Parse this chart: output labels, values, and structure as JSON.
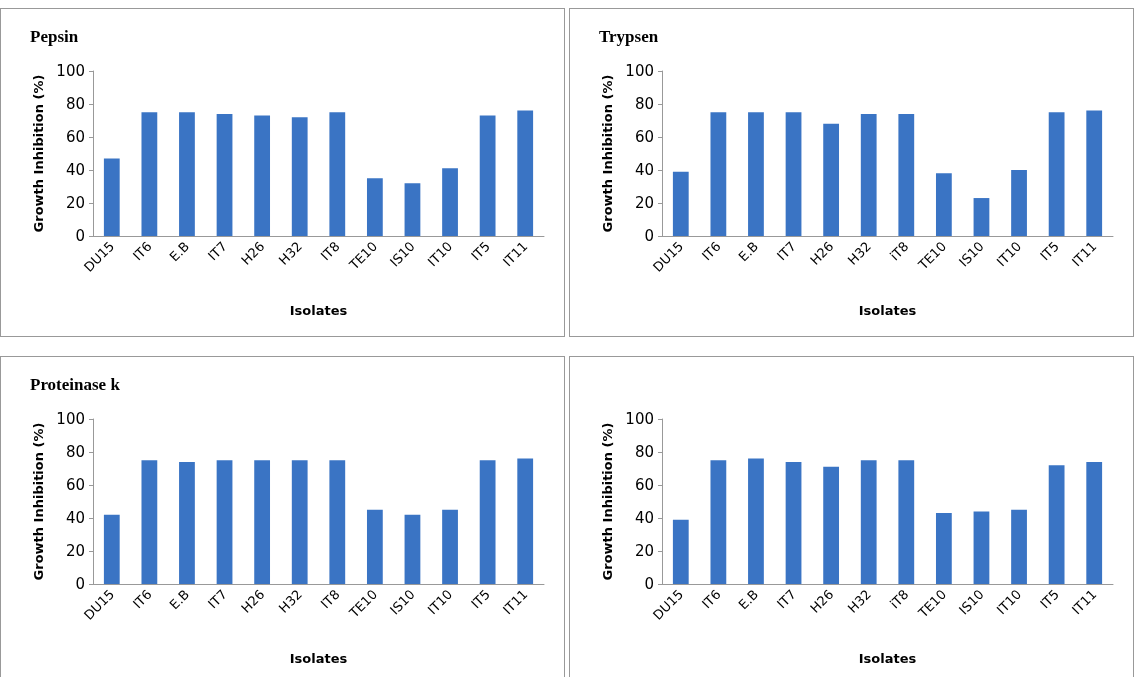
{
  "chart_data": [
    {
      "type": "bar",
      "title": "Pepsin",
      "xlabel": "Isolates",
      "ylabel": "Growth Inhibition (%)",
      "categories": [
        "DU15",
        "IT6",
        "E.B",
        "IT7",
        "H26",
        "H32",
        "IT8",
        "TE10",
        "IS10",
        "IT10",
        "IT5",
        "IT11"
      ],
      "values": [
        47,
        75,
        75,
        74,
        73,
        72,
        75,
        35,
        32,
        41,
        73,
        76
      ],
      "color": "#3a74c4",
      "ylim": [
        0,
        100
      ],
      "yticks": [
        0,
        20,
        40,
        60,
        80,
        100
      ],
      "grid": false
    },
    {
      "type": "bar",
      "title": "Trypsen",
      "xlabel": "Isolates",
      "ylabel": "Growth Inhibition (%)",
      "categories": [
        "DU15",
        "IT6",
        "E.B",
        "IT7",
        "H26",
        "H32",
        "iT8",
        "TE10",
        "IS10",
        "IT10",
        "IT5",
        "IT11"
      ],
      "values": [
        39,
        75,
        75,
        75,
        68,
        74,
        74,
        38,
        23,
        40,
        75,
        76
      ],
      "color": "#3a74c4",
      "ylim": [
        0,
        100
      ],
      "yticks": [
        0,
        20,
        40,
        60,
        80,
        100
      ],
      "grid": false
    },
    {
      "type": "bar",
      "title": "Proteinase k",
      "xlabel": "Isolates",
      "ylabel": "Growth Inhibition (%)",
      "categories": [
        "DU15",
        "IT6",
        "E.B",
        "IT7",
        "H26",
        "H32",
        "IT8",
        "TE10",
        "IS10",
        "IT10",
        "IT5",
        "IT11"
      ],
      "values": [
        42,
        75,
        74,
        75,
        75,
        75,
        75,
        45,
        42,
        45,
        75,
        76
      ],
      "color": "#3a74c4",
      "ylim": [
        0,
        100
      ],
      "yticks": [
        0,
        20,
        40,
        60,
        80,
        100
      ],
      "grid": false
    },
    {
      "type": "bar",
      "xlabel": "Isolates",
      "ylabel": "Growth Inhibition (%)",
      "categories": [
        "DU15",
        "IT6",
        "E.B",
        "IT7",
        "H26",
        "H32",
        "iT8",
        "TE10",
        "IS10",
        "IT10",
        "IT5",
        "IT11"
      ],
      "values": [
        39,
        75,
        76,
        74,
        71,
        75,
        75,
        43,
        44,
        45,
        72,
        74
      ],
      "color": "#3a74c4",
      "ylim": [
        0,
        100
      ],
      "yticks": [
        0,
        20,
        40,
        60,
        80,
        100
      ],
      "grid": false
    }
  ]
}
